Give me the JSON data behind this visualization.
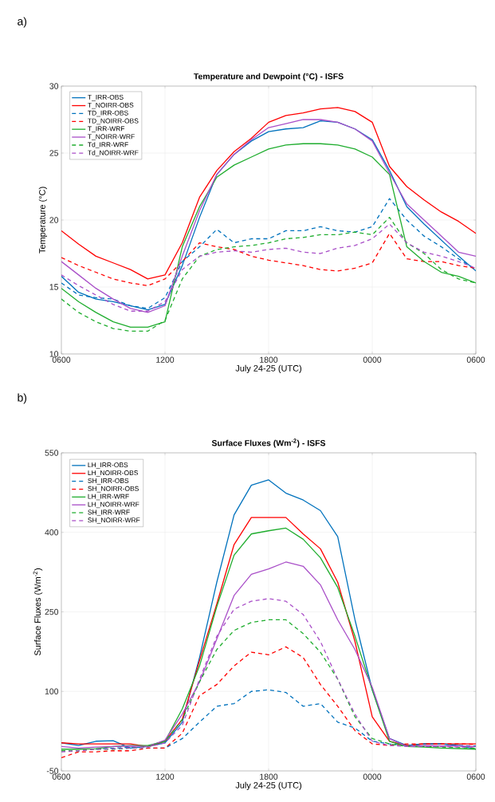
{
  "chart_data": [
    {
      "type": "line",
      "title": "Temperature and Dewpoint (°C) - ISFS",
      "xlabel": "July 24-25 (UTC)",
      "ylabel": "Temperature (°C)",
      "annotations": [
        "a)"
      ],
      "categories": [
        "0600",
        null,
        null,
        null,
        null,
        null,
        "1200",
        null,
        null,
        null,
        null,
        null,
        "1800",
        null,
        null,
        null,
        null,
        null,
        "0000",
        null,
        null,
        null,
        null,
        null,
        "0600"
      ],
      "ylim": [
        10,
        30
      ],
      "yticks": [
        10,
        15,
        20,
        25,
        30
      ],
      "grid": true,
      "legend": "top left",
      "marker": "none",
      "series": [
        {
          "name": "T_IRR-OBS",
          "color": "#0072bd",
          "line_style": "solid",
          "values": [
            15.8,
            14.6,
            14.1,
            13.9,
            13.6,
            13.3,
            13.7,
            16.6,
            20.2,
            23.4,
            24.9,
            25.9,
            26.6,
            26.8,
            26.9,
            27.4,
            27.3,
            26.8,
            26.0,
            23.7,
            21.0,
            19.7,
            18.5,
            17.3,
            16.2
          ]
        },
        {
          "name": "T_NOIRR-OBS",
          "color": "#ff0000",
          "line_style": "solid",
          "values": [
            19.2,
            18.2,
            17.3,
            16.8,
            16.3,
            15.6,
            15.9,
            18.3,
            21.7,
            23.7,
            25.1,
            26.1,
            27.3,
            27.8,
            28.0,
            28.3,
            28.4,
            28.1,
            27.3,
            24.0,
            22.5,
            21.5,
            20.6,
            19.9,
            19.0
          ]
        },
        {
          "name": "TD_IRR-OBS",
          "color": "#0072bd",
          "line_style": "dashed",
          "values": [
            15.3,
            14.4,
            14.2,
            14.1,
            13.6,
            13.4,
            14.2,
            16.9,
            18.0,
            19.3,
            18.3,
            18.6,
            18.6,
            19.2,
            19.2,
            19.5,
            19.2,
            19.1,
            19.5,
            21.6,
            20.0,
            18.8,
            18.0,
            17.1,
            16.3
          ]
        },
        {
          "name": "TD_NOIRR-OBS",
          "color": "#ff0000",
          "line_style": "dashed",
          "values": [
            17.2,
            16.6,
            16.1,
            15.6,
            15.3,
            15.1,
            15.6,
            16.9,
            18.3,
            18.0,
            17.8,
            17.3,
            17.0,
            16.8,
            16.6,
            16.3,
            16.2,
            16.4,
            16.8,
            19.0,
            17.1,
            16.9,
            16.9,
            16.6,
            16.4
          ]
        },
        {
          "name": "T_IRR-WRF",
          "color": "#1fad2e",
          "line_style": "solid",
          "values": [
            14.9,
            13.9,
            13.1,
            12.4,
            12.0,
            12.0,
            12.4,
            18.0,
            21.0,
            23.2,
            24.1,
            24.7,
            25.3,
            25.6,
            25.7,
            25.7,
            25.6,
            25.3,
            24.7,
            23.4,
            18.0,
            16.9,
            16.1,
            15.8,
            15.3
          ]
        },
        {
          "name": "T_NOIRR-WRF",
          "color": "#a94fc8",
          "line_style": "solid",
          "values": [
            16.9,
            15.9,
            14.9,
            14.1,
            13.4,
            13.1,
            13.6,
            17.3,
            20.7,
            23.4,
            24.9,
            26.0,
            26.9,
            27.2,
            27.5,
            27.5,
            27.3,
            26.8,
            25.9,
            23.5,
            21.2,
            20.0,
            18.8,
            17.6,
            17.3
          ]
        },
        {
          "name": "Td_IRR-WRF",
          "color": "#1fad2e",
          "line_style": "dashed",
          "values": [
            14.1,
            13.1,
            12.4,
            11.9,
            11.7,
            11.7,
            12.5,
            15.6,
            17.3,
            17.8,
            18.0,
            18.1,
            18.3,
            18.6,
            18.7,
            18.9,
            18.9,
            19.1,
            18.9,
            20.2,
            18.3,
            17.5,
            16.3,
            15.6,
            15.3
          ]
        },
        {
          "name": "Td_NOIRR-WRF",
          "color": "#a94fc8",
          "line_style": "dashed",
          "values": [
            15.9,
            15.1,
            14.4,
            13.7,
            13.2,
            13.2,
            13.9,
            16.3,
            17.3,
            17.6,
            17.7,
            17.6,
            17.8,
            17.9,
            17.6,
            17.5,
            17.9,
            18.1,
            18.6,
            19.7,
            18.3,
            17.6,
            17.3,
            16.9,
            16.4
          ]
        }
      ]
    },
    {
      "type": "line",
      "title": "Surface Fluxes (Wm$^{-2}$) - ISFS",
      "xlabel": "July 24-25 (UTC)",
      "ylabel": "Surface Fluxes (Wm$^{-2}$)",
      "annotations": [
        "b)"
      ],
      "categories": [
        "0600",
        null,
        null,
        null,
        null,
        null,
        "1200",
        null,
        null,
        null,
        null,
        null,
        "1800",
        null,
        null,
        null,
        null,
        null,
        "0000",
        null,
        null,
        null,
        null,
        null,
        "0600"
      ],
      "ylim": [
        -50,
        550
      ],
      "yticks": [
        -50,
        100,
        250,
        400,
        550
      ],
      "grid": true,
      "legend": "top left",
      "marker": "none",
      "series": [
        {
          "name": "LH_IRR-OBS",
          "color": "#0072bd",
          "line_style": "solid",
          "values": [
            3,
            -2,
            6,
            7,
            -7,
            -4,
            3,
            42,
            164,
            306,
            433,
            489,
            499,
            474,
            461,
            441,
            392,
            235,
            103,
            11,
            -2,
            1,
            1,
            -2,
            -9
          ]
        },
        {
          "name": "LH_NOIRR-OBS",
          "color": "#ff0000",
          "line_style": "solid",
          "values": [
            3,
            1,
            1,
            1,
            1,
            -4,
            6,
            47,
            158,
            265,
            377,
            428,
            428,
            428,
            397,
            369,
            306,
            194,
            52,
            6,
            -2,
            1,
            1,
            1,
            1
          ]
        },
        {
          "name": "SH_IRR-OBS",
          "color": "#0072bd",
          "line_style": "dashed",
          "values": [
            null,
            null,
            -9,
            -7,
            -5,
            -7,
            -7,
            11,
            42,
            72,
            77,
            100,
            103,
            98,
            72,
            77,
            42,
            31,
            6,
            1,
            -2,
            1,
            1,
            -2,
            -3
          ]
        },
        {
          "name": "SH_NOIRR-OBS",
          "color": "#ff0000",
          "line_style": "dashed",
          "values": [
            -25,
            -14,
            -14,
            -12,
            -12,
            -7,
            -7,
            21,
            92,
            113,
            148,
            174,
            169,
            184,
            164,
            113,
            72,
            26,
            1,
            -2,
            1,
            1,
            1,
            1,
            0
          ]
        },
        {
          "name": "LH_IRR-WRF",
          "color": "#1fad2e",
          "line_style": "solid",
          "values": [
            -9,
            -9,
            -8,
            -4,
            -2,
            -2,
            6,
            67,
            148,
            260,
            357,
            397,
            403,
            408,
            387,
            352,
            296,
            204,
            103,
            6,
            -4,
            -5,
            -7,
            -8,
            -9
          ]
        },
        {
          "name": "LH_NOIRR-WRF",
          "color": "#a94fc8",
          "line_style": "solid",
          "values": [
            -4,
            -7,
            -5,
            -4,
            -3,
            -4,
            8,
            57,
            118,
            199,
            281,
            321,
            331,
            344,
            336,
            301,
            235,
            179,
            108,
            11,
            -4,
            -2,
            -3,
            -3,
            -4
          ]
        },
        {
          "name": "SH_IRR-WRF",
          "color": "#1fad2e",
          "line_style": "dashed",
          "values": [
            -12,
            -12,
            -9,
            -9,
            -7,
            -4,
            6,
            47,
            118,
            179,
            215,
            230,
            235,
            235,
            209,
            174,
            123,
            52,
            11,
            1,
            -4,
            -4,
            -5,
            -6,
            -7
          ]
        },
        {
          "name": "SH_NOIRR-WRF",
          "color": "#a94fc8",
          "line_style": "dashed",
          "values": [
            -14,
            -12,
            -9,
            -8,
            -7,
            -5,
            3,
            36,
            123,
            204,
            255,
            270,
            275,
            270,
            245,
            194,
            123,
            57,
            6,
            -2,
            -4,
            -4,
            -4,
            -5,
            -5
          ]
        }
      ]
    }
  ]
}
